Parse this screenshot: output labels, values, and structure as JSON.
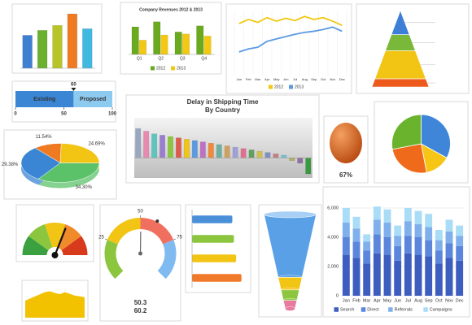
{
  "chart_data": [
    {
      "type": "bar",
      "values": [
        40,
        46,
        52,
        66,
        48
      ],
      "colors": [
        "#3f7fd2",
        "#6bb02e",
        "#b7c42a",
        "#f07a22",
        "#41b8e0"
      ],
      "ylim": [
        0,
        70
      ]
    },
    {
      "type": "bar",
      "title": "Company Revenues 2012 & 2013",
      "categories": [
        "Q1",
        "Q2",
        "Q3",
        "Q4"
      ],
      "series": [
        {
          "name": "2012",
          "color": "#6aaa1e",
          "values": [
            27,
            32,
            22,
            28
          ]
        },
        {
          "name": "2013",
          "color": "#f2c811",
          "values": [
            14,
            19,
            20,
            18
          ]
        }
      ],
      "ylim": [
        0,
        35
      ]
    },
    {
      "type": "line",
      "categories": [
        "Jan",
        "Feb",
        "Mar",
        "Apr",
        "May",
        "Jun",
        "Jul",
        "Aug",
        "Sep",
        "Oct",
        "Nov",
        "Dec"
      ],
      "series": [
        {
          "name": "2012",
          "color": "#f2c811",
          "values": [
            88,
            95,
            90,
            98,
            92,
            97,
            93,
            100,
            95,
            98,
            92,
            85
          ]
        },
        {
          "name": "2013",
          "color": "#5b9ae0",
          "values": [
            40,
            45,
            48,
            58,
            62,
            66,
            70,
            73,
            75,
            78,
            82,
            75
          ]
        }
      ],
      "ylim": [
        0,
        110
      ]
    },
    {
      "type": "pyramid",
      "values": [
        30,
        20,
        35,
        10
      ],
      "colors": [
        "#3d7fd6",
        "#7ab83a",
        "#f2c414",
        "#ee5a1c"
      ]
    },
    {
      "type": "bullet",
      "value": 60,
      "xlim": [
        0,
        100
      ],
      "xticks": [
        0,
        50,
        100
      ],
      "categories": [
        "Existing",
        "Proposed"
      ],
      "colors": [
        "#3a86d4",
        "#8ccaf0"
      ]
    },
    {
      "type": "bar",
      "title": "Delay in Shipping Time",
      "subtitle": "By Country",
      "values": [
        22,
        20,
        18,
        17,
        16,
        15,
        14,
        13,
        12,
        11,
        10,
        9,
        8,
        7,
        6,
        5,
        4,
        3,
        2,
        -2,
        -4,
        -12
      ],
      "colors": [
        "#9aa7c0",
        "#e88ab0",
        "#5fc4c0",
        "#9a7ed0",
        "#8cc63f",
        "#e05a4a",
        "#f2c414",
        "#5a9ae0",
        "#c070c0",
        "#f08a3a",
        "#70b0a0",
        "#d0a060",
        "#a0a0d8",
        "#e07090",
        "#60a060",
        "#d0c050",
        "#8090c0",
        "#c08080",
        "#70c0d0",
        "#b0b060",
        "#9070a0",
        "#3a9a40"
      ],
      "ylim": [
        -15,
        30
      ]
    },
    {
      "type": "ball",
      "values": [
        67
      ],
      "value_labels": [
        "67%"
      ],
      "color": "#d4601c"
    },
    {
      "type": "pie",
      "values": [
        33,
        14,
        25,
        28
      ],
      "colors": [
        "#3f86d9",
        "#f6c515",
        "#f06a1c",
        "#6ab42d"
      ]
    },
    {
      "type": "pie3d",
      "values": [
        11.54,
        24.69,
        34.3,
        29.38
      ],
      "value_labels": [
        "11.54%",
        "24.69%",
        "34.30%",
        "29.38%"
      ],
      "colors": [
        "#f07a22",
        "#f2c414",
        "#5cc26a",
        "#3a86d4"
      ]
    },
    {
      "type": "gauge",
      "value": 62,
      "xlim": [
        0,
        100
      ]
    },
    {
      "type": "ring",
      "values": [
        50.3,
        60.2
      ],
      "ylim": [
        0,
        100
      ],
      "yticks": [
        25,
        50,
        75
      ]
    },
    {
      "type": "hbar",
      "values": [
        75,
        78,
        82,
        92
      ],
      "colors": [
        "#4a90d9",
        "#8cc63f",
        "#f2c414",
        "#f07a2a"
      ],
      "xlim": [
        0,
        100
      ]
    },
    {
      "type": "funnel",
      "values": [
        60,
        12,
        10,
        8
      ],
      "colors": [
        "#5aa0e6",
        "#f2c414",
        "#8cc63f",
        "#e87aa0"
      ]
    },
    {
      "type": "area",
      "values": [
        40,
        45,
        50,
        55,
        60,
        62,
        58,
        55,
        60,
        56,
        52,
        50,
        48
      ],
      "ylim": [
        0,
        80
      ],
      "color": "#f2c200"
    },
    {
      "type": "stacked",
      "categories": [
        "Jan",
        "Feb",
        "Mar",
        "Apr",
        "May",
        "Jun",
        "Jul",
        "Aug",
        "Sep",
        "Oct",
        "Nov",
        "Dec"
      ],
      "series": [
        {
          "name": "Search",
          "color": "#3d5dbf",
          "values": [
            2800,
            2600,
            2200,
            2900,
            2800,
            2400,
            2900,
            2800,
            2700,
            2200,
            2600,
            2400
          ]
        },
        {
          "name": "Direct",
          "color": "#5b86db",
          "values": [
            1200,
            1100,
            900,
            1300,
            1200,
            1000,
            1200,
            1200,
            1100,
            900,
            1000,
            1000
          ]
        },
        {
          "name": "Referrals",
          "color": "#7fb0ec",
          "values": [
            1000,
            900,
            600,
            1000,
            1000,
            700,
            1000,
            900,
            900,
            700,
            800,
            700
          ]
        },
        {
          "name": "Campaigns",
          "color": "#a9dcf6",
          "values": [
            1000,
            800,
            500,
            900,
            900,
            700,
            900,
            900,
            900,
            700,
            800,
            700
          ]
        }
      ],
      "ylim": [
        0,
        7000
      ],
      "yticks": [
        0,
        {
          "value": 2000,
          "label": "2,000"
        },
        {
          "value": 4000,
          "label": "4,000"
        },
        {
          "value": 6000,
          "label": "6,000"
        }
      ]
    }
  ]
}
